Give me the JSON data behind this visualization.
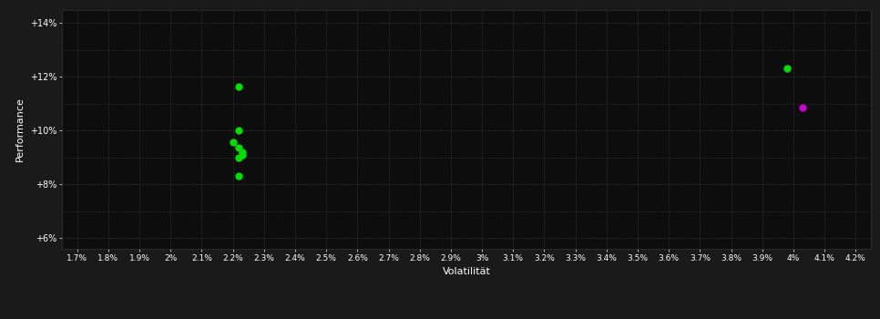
{
  "green_points": [
    [
      2.22,
      11.65
    ],
    [
      2.22,
      10.0
    ],
    [
      2.2,
      9.55
    ],
    [
      2.22,
      9.35
    ],
    [
      2.23,
      9.2
    ],
    [
      2.23,
      9.1
    ],
    [
      2.22,
      9.0
    ],
    [
      2.22,
      8.3
    ]
  ],
  "green_point_far": [
    3.98,
    12.3
  ],
  "magenta_point": [
    4.03,
    10.85
  ],
  "xlim": [
    1.65,
    4.25
  ],
  "ylim": [
    5.6,
    14.5
  ],
  "xticks": [
    1.7,
    1.8,
    1.9,
    2.0,
    2.1,
    2.2,
    2.3,
    2.4,
    2.5,
    2.6,
    2.7,
    2.8,
    2.9,
    3.0,
    3.1,
    3.2,
    3.3,
    3.4,
    3.5,
    3.6,
    3.7,
    3.8,
    3.9,
    4.0,
    4.1,
    4.2
  ],
  "yticks": [
    6.0,
    8.0,
    10.0,
    12.0,
    14.0
  ],
  "ytick_labels": [
    "+6%",
    "+8%",
    "+10%",
    "+12%",
    "+14%"
  ],
  "xlabel": "Volatilität",
  "ylabel": "Performance",
  "background_color": "#1a1a1a",
  "plot_bg_color": "#0d0d0d",
  "grid_color": "#4a4a4a",
  "green_color": "#00dd00",
  "magenta_color": "#cc00cc",
  "marker_size": 6
}
